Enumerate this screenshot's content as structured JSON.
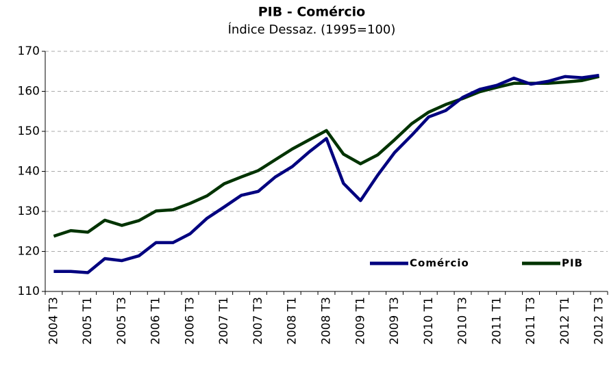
{
  "chart_data": {
    "type": "line",
    "title": "PIB - Comércio",
    "subtitle": "Índice Dessaz. (1995=100)",
    "categories": [
      "2004 T3",
      null,
      "2005 T1",
      null,
      "2005 T3",
      null,
      "2006 T1",
      null,
      "2006 T3",
      null,
      "2007 T1",
      null,
      "2007 T3",
      null,
      "2008 T1",
      null,
      "2008 T3",
      null,
      "2009 T1",
      null,
      "2009 T3",
      null,
      "2010 T1",
      null,
      "2010 T3",
      null,
      "2011 T1",
      null,
      "2011 T3",
      null,
      "2012 T1",
      null,
      "2012 T3"
    ],
    "series": [
      {
        "name": "Comércio",
        "color": "#00007f",
        "values": [
          115,
          115,
          114.7,
          118.2,
          117.7,
          118.9,
          122.2,
          122.2,
          124.4,
          128.3,
          131.1,
          134,
          135,
          138.6,
          141.2,
          144.9,
          148.2,
          137,
          132.7,
          139,
          144.7,
          149,
          153.6,
          155.2,
          158.5,
          160.5,
          161.5,
          163.3,
          161.8,
          162.5,
          163.7,
          163.4,
          164
        ]
      },
      {
        "name": "PIB",
        "color": "#003300",
        "values": [
          123.8,
          125.2,
          124.8,
          127.8,
          126.5,
          127.7,
          130.1,
          130.4,
          132,
          133.9,
          136.9,
          138.6,
          140.2,
          142.9,
          145.6,
          147.9,
          150.2,
          144.3,
          141.9,
          144.1,
          147.9,
          151.9,
          154.8,
          156.7,
          158.2,
          159.9,
          161,
          162,
          162,
          162,
          162.3,
          162.7,
          163.7
        ]
      }
    ],
    "ylim": [
      110,
      170
    ],
    "yticks": [
      110,
      120,
      130,
      140,
      150,
      160,
      170
    ],
    "grid": true,
    "legend": "bottom-right"
  }
}
